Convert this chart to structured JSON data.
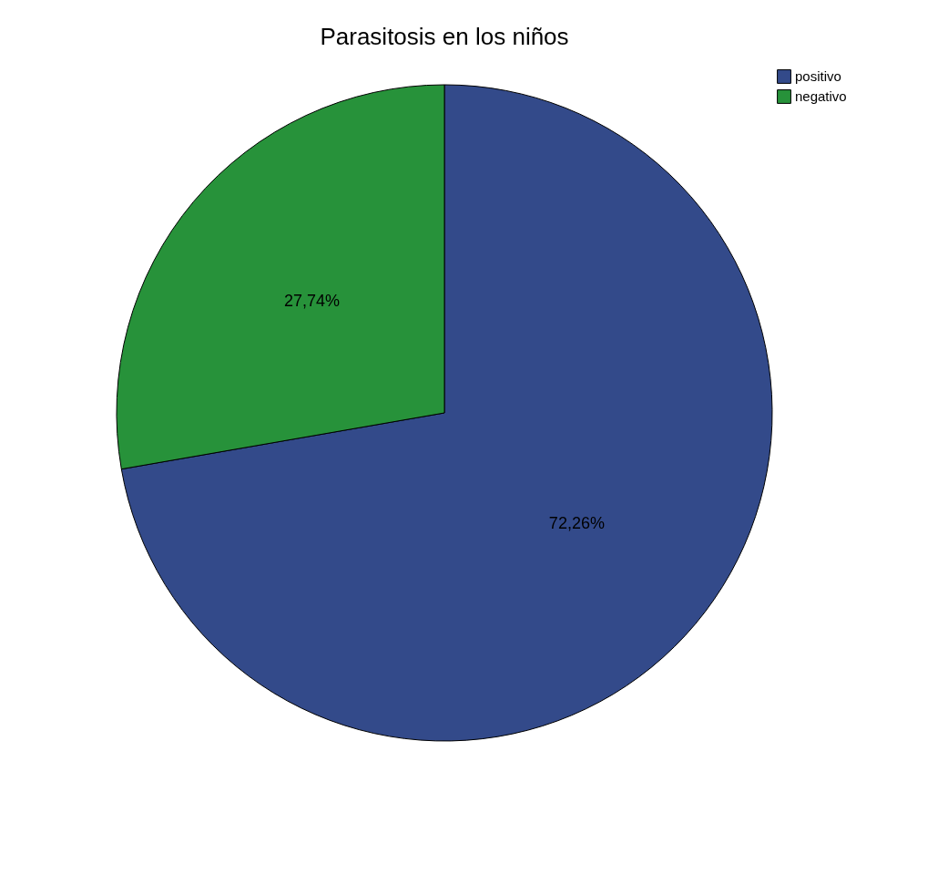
{
  "chart_data": {
    "type": "pie",
    "title": "Parasitosis en los niños",
    "categories": [
      "positivo",
      "negativo"
    ],
    "values": [
      72.26,
      27.74
    ],
    "colors": [
      "#334a8a",
      "#27923a"
    ],
    "value_labels": [
      "72,26%",
      "27,74%"
    ],
    "legend": "top right"
  }
}
